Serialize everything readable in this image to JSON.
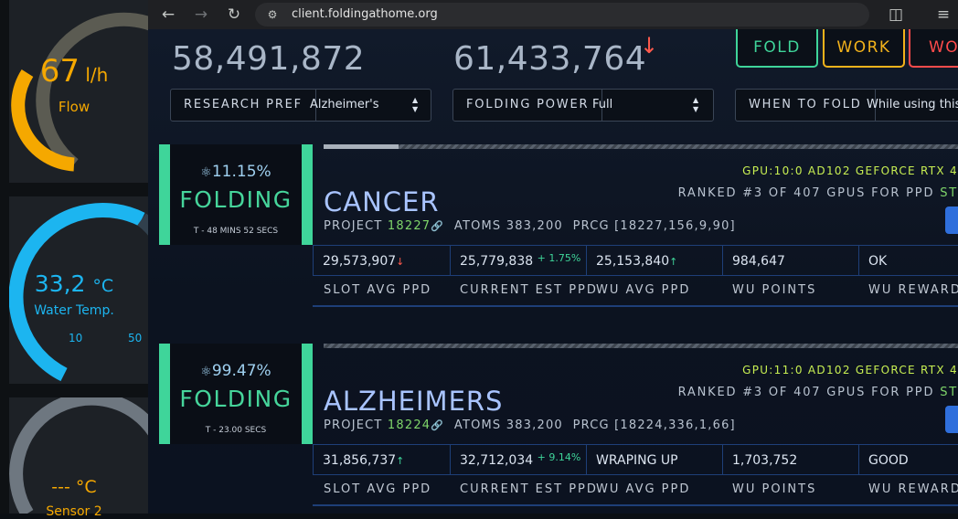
{
  "dashboard": {
    "flow": {
      "value": "67",
      "unit": "l/h",
      "label": "Flow",
      "color": "#f5a800"
    },
    "water": {
      "value": "33,2",
      "unit": "°C",
      "label": "Water Temp.",
      "min": "10",
      "max": "50",
      "color": "#1cb5f0"
    },
    "sensor": {
      "value": "---",
      "unit": "°C",
      "label": "Sensor 2"
    }
  },
  "browser": {
    "url": "client.foldingathome.org",
    "icons": [
      "back-icon",
      "forward-icon",
      "reload-icon",
      "site-settings-icon",
      "bookmark-star-icon",
      "extensions-icon",
      "reading-list-icon"
    ]
  },
  "stats": {
    "total1": "58,491,872",
    "total2": "61,433,764",
    "total2_trend": "↓"
  },
  "buttons": {
    "fold": "FOLD",
    "work": "WORK",
    "third": "WO"
  },
  "controls": {
    "research": {
      "label": "RESEARCH PREF",
      "value": "Alzheimer's"
    },
    "power": {
      "label": "FOLDING POWER",
      "value": "Full"
    },
    "when": {
      "label": "WHEN TO FOLD",
      "value": "While using this"
    }
  },
  "slots": [
    {
      "percent": "11.15%",
      "status": "FOLDING",
      "time": "T - 48 MINS 52 SECS",
      "cause": "CANCER",
      "project_label": "PROJECT",
      "project_num": "18227",
      "atoms_label": "ATOMS",
      "atoms": "383,200",
      "prcg_label": "PRCG",
      "prcg": "[18227,156,9,90]",
      "gpu": "GPU:10:0 AD102 GEFORCE RTX 4",
      "rank": "RANKED #3 OF 407 GPUS FOR PPD",
      "rank_tail": "ST",
      "values": {
        "slot_avg": "29,573,907",
        "slot_avg_trend": "↓",
        "current_est": "25,779,838",
        "current_est_delta": "+ 1.75%",
        "wu_avg": "25,153,840",
        "wu_avg_trend": "↑",
        "wu_points": "984,647",
        "wu_reward": "OK"
      }
    },
    {
      "percent": "99.47%",
      "status": "FOLDING",
      "time": "T - 23.00 SECS",
      "cause": "ALZHEIMERS",
      "project_label": "PROJECT",
      "project_num": "18224",
      "atoms_label": "ATOMS",
      "atoms": "383,200",
      "prcg_label": "PRCG",
      "prcg": "[18224,336,1,66]",
      "gpu": "GPU:11:0 AD102 GEFORCE RTX 4",
      "rank": "RANKED #3 OF 407 GPUS FOR PPD",
      "rank_tail": "ST",
      "values": {
        "slot_avg": "31,856,737",
        "slot_avg_trend": "↑",
        "current_est": "32,712,034",
        "current_est_delta": "+ 9.14%",
        "wu_avg": "WRAPING UP",
        "wu_avg_trend": "",
        "wu_points": "1,703,752",
        "wu_reward": "GOOD"
      }
    }
  ],
  "headers": {
    "slot_avg": "SLOT AVG PPD",
    "current_est": "CURRENT EST PPD",
    "wu_avg": "WU AVG PPD",
    "wu_points": "WU POINTS",
    "wu_reward": "WU REWARD"
  }
}
